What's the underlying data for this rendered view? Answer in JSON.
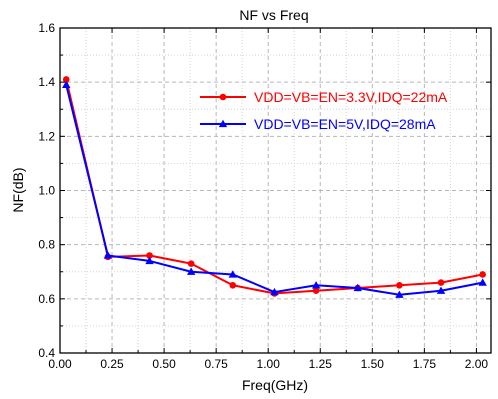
{
  "chart_data": {
    "type": "line",
    "title": "NF vs Freq",
    "xlabel": "Freq(GHz)",
    "ylabel": "NF(dB)",
    "xlim": [
      0.0,
      2.07
    ],
    "ylim": [
      0.4,
      1.6
    ],
    "x_ticks": [
      "0.00",
      "0.25",
      "0.50",
      "0.75",
      "1.00",
      "1.25",
      "1.50",
      "1.75",
      "2.00"
    ],
    "y_ticks": [
      "0.4",
      "0.6",
      "0.8",
      "1.0",
      "1.2",
      "1.4",
      "1.6"
    ],
    "grid": true,
    "legend_position": "upper-right",
    "series": [
      {
        "name": "VDD=VB=EN=3.3V,IDQ=22mA",
        "color": "#ff0000",
        "marker": "circle",
        "x": [
          0.03,
          0.23,
          0.43,
          0.63,
          0.83,
          1.03,
          1.23,
          1.43,
          1.63,
          1.83,
          2.03
        ],
        "values": [
          1.41,
          0.755,
          0.76,
          0.73,
          0.65,
          0.62,
          0.63,
          0.64,
          0.65,
          0.66,
          0.69
        ]
      },
      {
        "name": "VDD=VB=EN=5V,IDQ=28mA",
        "color": "#0000ff",
        "marker": "triangle",
        "x": [
          0.03,
          0.23,
          0.43,
          0.63,
          0.83,
          1.03,
          1.23,
          1.43,
          1.63,
          1.83,
          2.03
        ],
        "values": [
          1.39,
          0.76,
          0.74,
          0.7,
          0.69,
          0.625,
          0.65,
          0.64,
          0.615,
          0.63,
          0.66
        ]
      }
    ]
  }
}
